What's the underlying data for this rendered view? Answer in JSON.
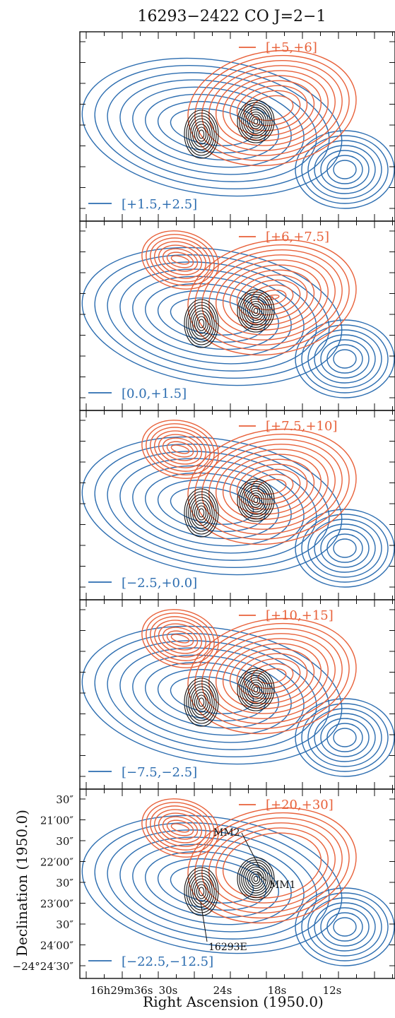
{
  "title": "16293−2422   CO J=2−1",
  "colors": {
    "red": "#E8613A",
    "blue": "#2C6DB0",
    "black": "#111111"
  },
  "chart_data": {
    "type": "contour",
    "title": "16293−2422   CO J=2−1",
    "xlabel": "Right Ascension (1950.0)",
    "ylabel": "Declination (1950.0)",
    "x_ticks": [
      "16h29m36s",
      "30s",
      "24s",
      "18s",
      "12s"
    ],
    "y_ticks": [
      "30″",
      "21′00″",
      "30″",
      "22′00″",
      "30″",
      "23′00″",
      "30″",
      "24′00″",
      "−24°24′30″"
    ],
    "panels": [
      {
        "red_label": "[+5,+6]",
        "blue_label": "[+1.5,+2.5]"
      },
      {
        "red_label": "[+6,+7.5]",
        "blue_label": "[0.0,+1.5]"
      },
      {
        "red_label": "[+7.5,+10]",
        "blue_label": "[−2.5,+0.0]"
      },
      {
        "red_label": "[+10,+15]",
        "blue_label": "[−7.5,−2.5]"
      },
      {
        "red_label": "[+20,+30]",
        "blue_label": "[−22.5,−12.5]"
      }
    ],
    "annotations": [
      "MM2",
      "MM1",
      "16293E"
    ]
  }
}
